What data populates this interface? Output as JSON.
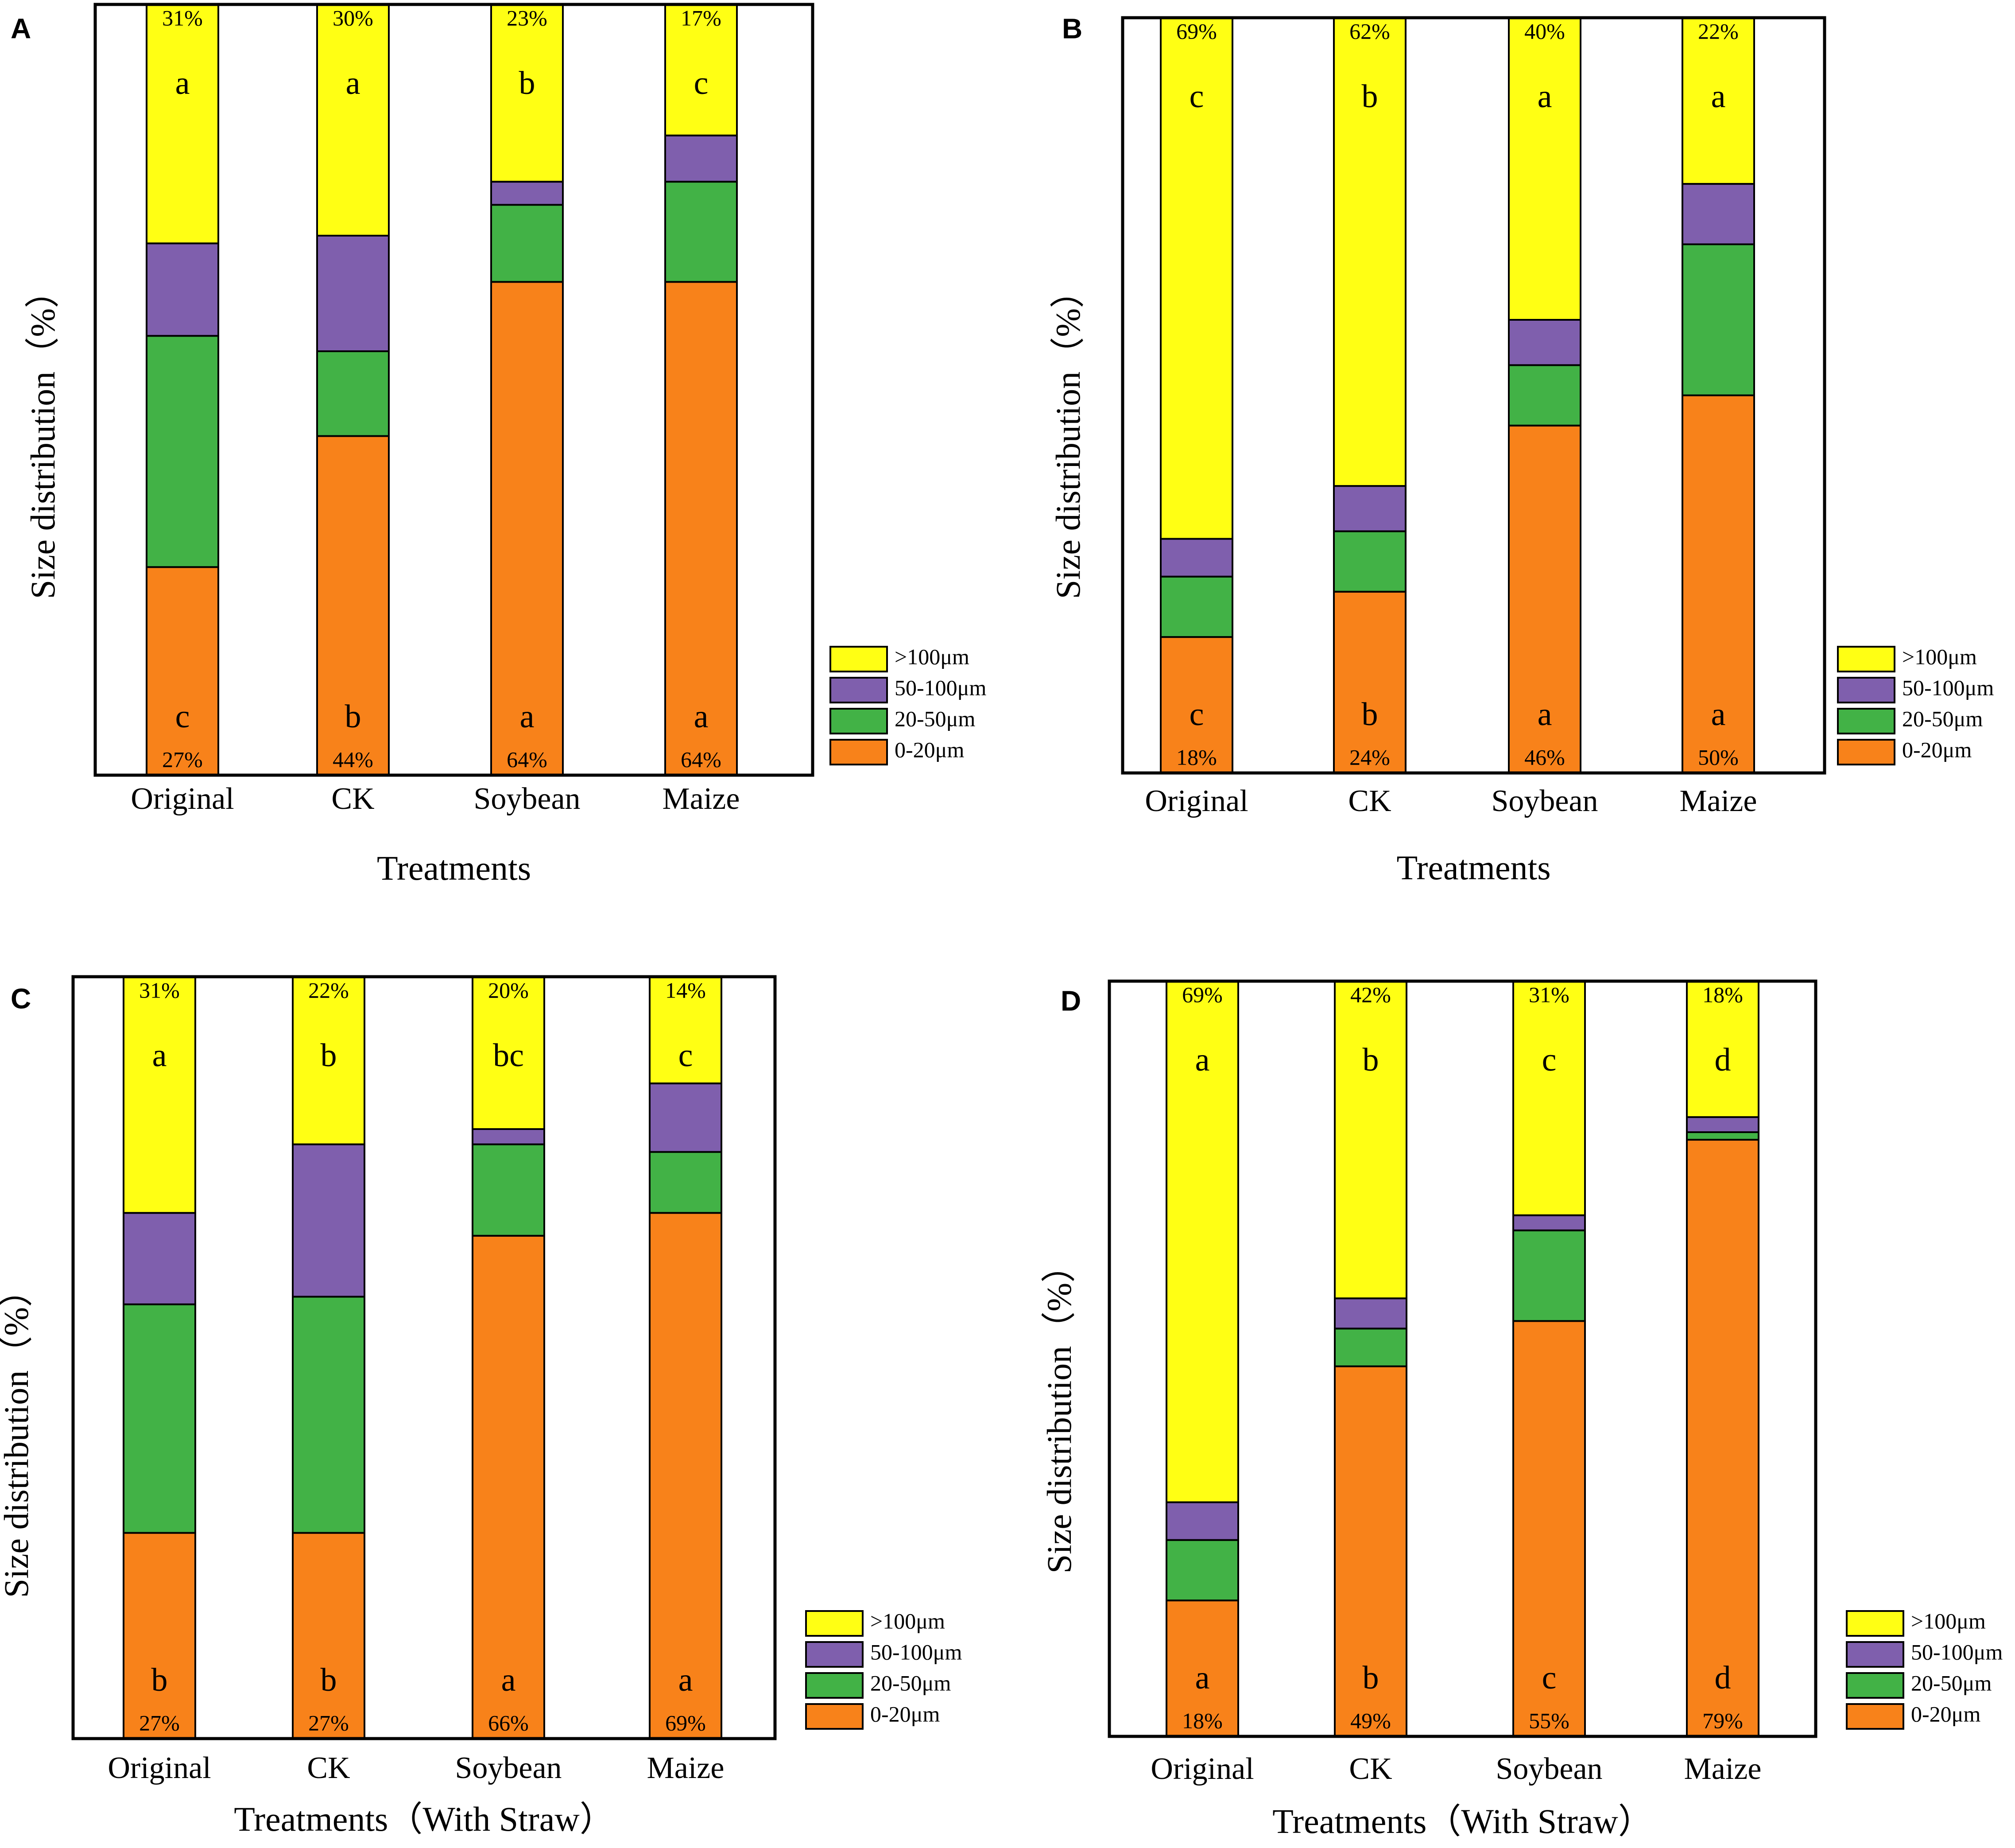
{
  "colors": {
    "gt100": "#ffff14",
    "b50_100": "#7f5fad",
    "b20_50": "#42b246",
    "b0_20": "#f8821a",
    "outline": "#000000"
  },
  "chart_data": [
    {
      "panel": "A",
      "type": "bar",
      "stacked": true,
      "xlabel": "Treatments",
      "ylabel": "Size distribution（%）",
      "ylim": [
        0,
        100
      ],
      "categories": [
        "Original",
        "CK",
        "Soybean",
        "Maize"
      ],
      "series": [
        {
          "name": "0-20μm",
          "values": [
            27,
            44,
            64,
            64
          ],
          "letters": [
            "c",
            "b",
            "a",
            "a"
          ],
          "labels": [
            "27%",
            "44%",
            "64%",
            "64%"
          ]
        },
        {
          "name": "20-50μm",
          "values": [
            30,
            11,
            10,
            13
          ]
        },
        {
          "name": "50-100μm",
          "values": [
            12,
            15,
            3,
            6
          ]
        },
        {
          "name": ">100μm",
          "values": [
            31,
            30,
            23,
            17
          ],
          "letters": [
            "a",
            "a",
            "b",
            "c"
          ],
          "labels": [
            "31%",
            "30%",
            "23%",
            "17%"
          ]
        }
      ]
    },
    {
      "panel": "B",
      "type": "bar",
      "stacked": true,
      "xlabel": "Treatments",
      "ylabel": "Size distribution（%）",
      "ylim": [
        0,
        100
      ],
      "categories": [
        "Original",
        "CK",
        "Soybean",
        "Maize"
      ],
      "series": [
        {
          "name": "0-20μm",
          "values": [
            18,
            24,
            46,
            50
          ],
          "letters": [
            "c",
            "b",
            "a",
            "a"
          ],
          "labels": [
            "18%",
            "24%",
            "46%",
            "50%"
          ]
        },
        {
          "name": "20-50μm",
          "values": [
            8,
            8,
            8,
            20
          ]
        },
        {
          "name": "50-100μm",
          "values": [
            5,
            6,
            6,
            8
          ]
        },
        {
          "name": ">100μm",
          "values": [
            69,
            62,
            40,
            22
          ],
          "letters": [
            "c",
            "b",
            "a",
            "a"
          ],
          "labels": [
            "69%",
            "62%",
            "40%",
            "22%"
          ]
        }
      ]
    },
    {
      "panel": "C",
      "type": "bar",
      "stacked": true,
      "xlabel": "Treatments（With Straw）",
      "ylabel": "Size distribution（%）",
      "ylim": [
        0,
        100
      ],
      "categories": [
        "Original",
        "CK",
        "Soybean",
        "Maize"
      ],
      "series": [
        {
          "name": "0-20μm",
          "values": [
            27,
            27,
            66,
            69
          ],
          "letters": [
            "b",
            "b",
            "a",
            "a"
          ],
          "labels": [
            "27%",
            "27%",
            "66%",
            "69%"
          ]
        },
        {
          "name": "20-50μm",
          "values": [
            30,
            31,
            12,
            8
          ]
        },
        {
          "name": "50-100μm",
          "values": [
            12,
            20,
            2,
            9
          ]
        },
        {
          "name": ">100μm",
          "values": [
            31,
            22,
            20,
            14
          ],
          "letters": [
            "a",
            "b",
            "bc",
            "c"
          ],
          "labels": [
            "31%",
            "22%",
            "20%",
            "14%"
          ]
        }
      ]
    },
    {
      "panel": "D",
      "type": "bar",
      "stacked": true,
      "xlabel": "Treatments（With Straw）",
      "ylabel": "Size distribution（%）",
      "ylim": [
        0,
        100
      ],
      "categories": [
        "Original",
        "CK",
        "Soybean",
        "Maize"
      ],
      "series": [
        {
          "name": "0-20μm",
          "values": [
            18,
            49,
            55,
            79
          ],
          "letters": [
            "a",
            "b",
            "c",
            "d"
          ],
          "labels": [
            "18%",
            "49%",
            "55%",
            "79%"
          ]
        },
        {
          "name": "20-50μm",
          "values": [
            8,
            5,
            12,
            1
          ]
        },
        {
          "name": "50-100μm",
          "values": [
            5,
            4,
            2,
            2
          ]
        },
        {
          "name": ">100μm",
          "values": [
            69,
            42,
            31,
            18
          ],
          "letters": [
            "a",
            "b",
            "c",
            "d"
          ],
          "labels": [
            "69%",
            "42%",
            "31%",
            "18%"
          ]
        }
      ]
    }
  ]
}
